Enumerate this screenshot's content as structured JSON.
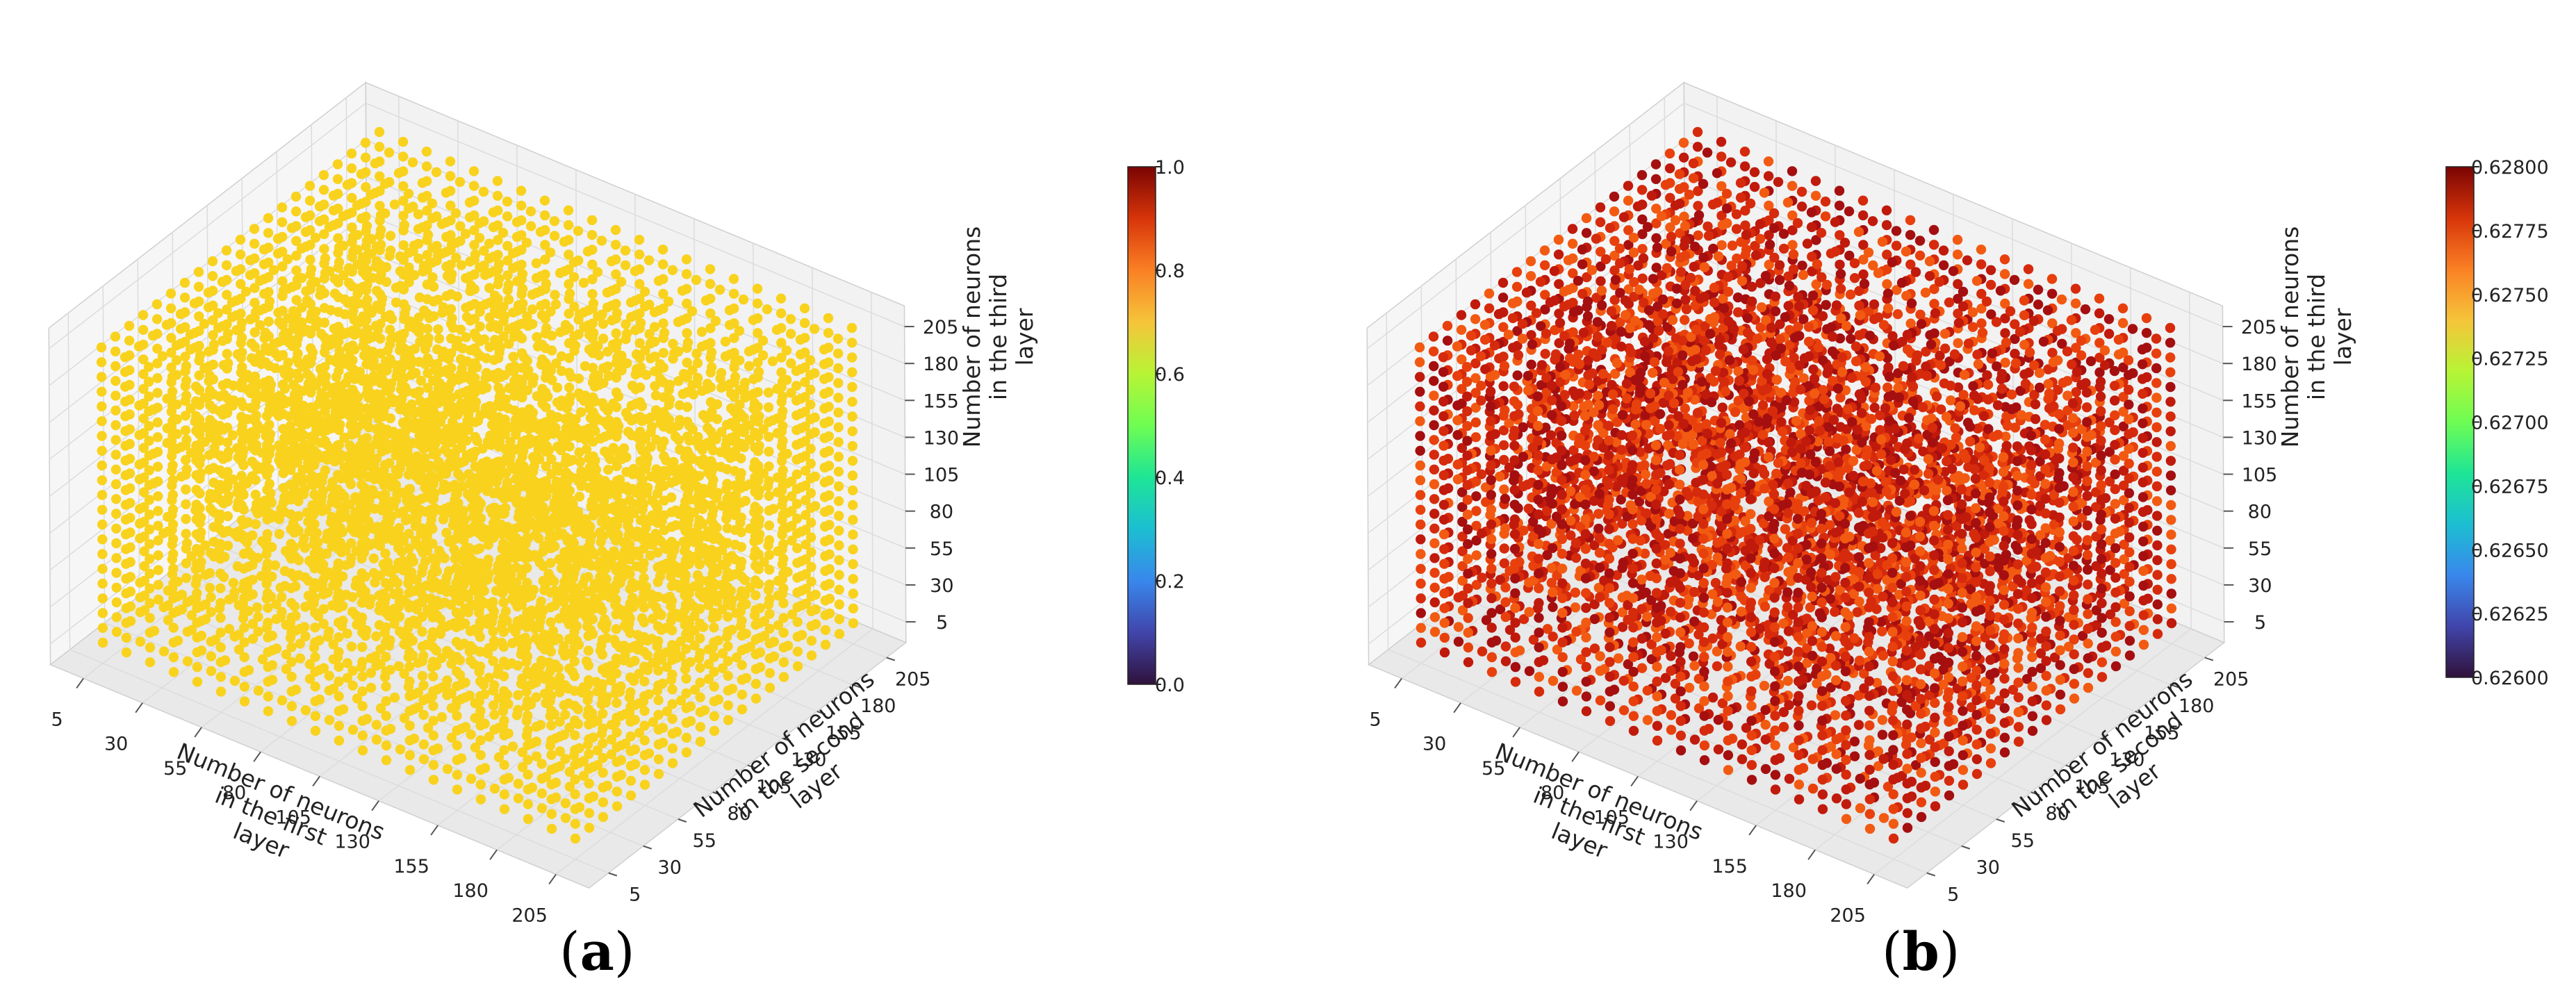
{
  "chart_data": [
    {
      "panel": "a",
      "type": "scatter",
      "scatter_3d": true,
      "x_ticks": [
        5,
        30,
        55,
        80,
        105,
        130,
        155,
        180,
        205
      ],
      "y_ticks": [
        5,
        30,
        55,
        80,
        105,
        130,
        155,
        180,
        205
      ],
      "z_ticks": [
        5,
        30,
        55,
        80,
        105,
        130,
        155,
        180,
        205
      ],
      "xlabel": [
        "Number of neurons",
        "in the first",
        "layer"
      ],
      "ylabel": [
        "Number of neurons",
        "in the second",
        "layer"
      ],
      "zlabel": [
        "Number of neurons",
        "in the third",
        "layer"
      ],
      "x_range": [
        5,
        205
      ],
      "y_range": [
        5,
        205
      ],
      "z_range": [
        5,
        205
      ],
      "grid_step": 10,
      "point_value": 0.6,
      "point_color": "#f9d21e",
      "colorbar": {
        "min": 0.0,
        "max": 1.0,
        "ticks": [
          "0.0",
          "0.2",
          "0.4",
          "0.6",
          "0.8",
          "1.0"
        ],
        "colormap": "turbo"
      },
      "grid": true
    },
    {
      "panel": "b",
      "type": "scatter",
      "scatter_3d": true,
      "x_ticks": [
        5,
        30,
        55,
        80,
        105,
        130,
        155,
        180,
        205
      ],
      "y_ticks": [
        5,
        30,
        55,
        80,
        105,
        130,
        155,
        180,
        205
      ],
      "z_ticks": [
        5,
        30,
        55,
        80,
        105,
        130,
        155,
        180,
        205
      ],
      "xlabel": [
        "Number of neurons",
        "in the first",
        "layer"
      ],
      "ylabel": [
        "Number of neurons",
        "in the second",
        "layer"
      ],
      "zlabel": [
        "Number of neurons",
        "in the third",
        "layer"
      ],
      "x_range": [
        5,
        205
      ],
      "y_range": [
        5,
        205
      ],
      "z_range": [
        5,
        205
      ],
      "grid_step": 10,
      "value_range_observed": [
        0.6277,
        0.628
      ],
      "point_colors": [
        "#a50f0f",
        "#c01a0c",
        "#d62a0c",
        "#e8400d",
        "#f25a12"
      ],
      "colorbar": {
        "min": 0.626,
        "max": 0.628,
        "ticks": [
          "0.62600",
          "0.62625",
          "0.62650",
          "0.62675",
          "0.62700",
          "0.62725",
          "0.62750",
          "0.62775",
          "0.62800"
        ],
        "colormap": "turbo"
      },
      "grid": true
    }
  ],
  "panel_labels": {
    "a": "a",
    "b": "b"
  }
}
